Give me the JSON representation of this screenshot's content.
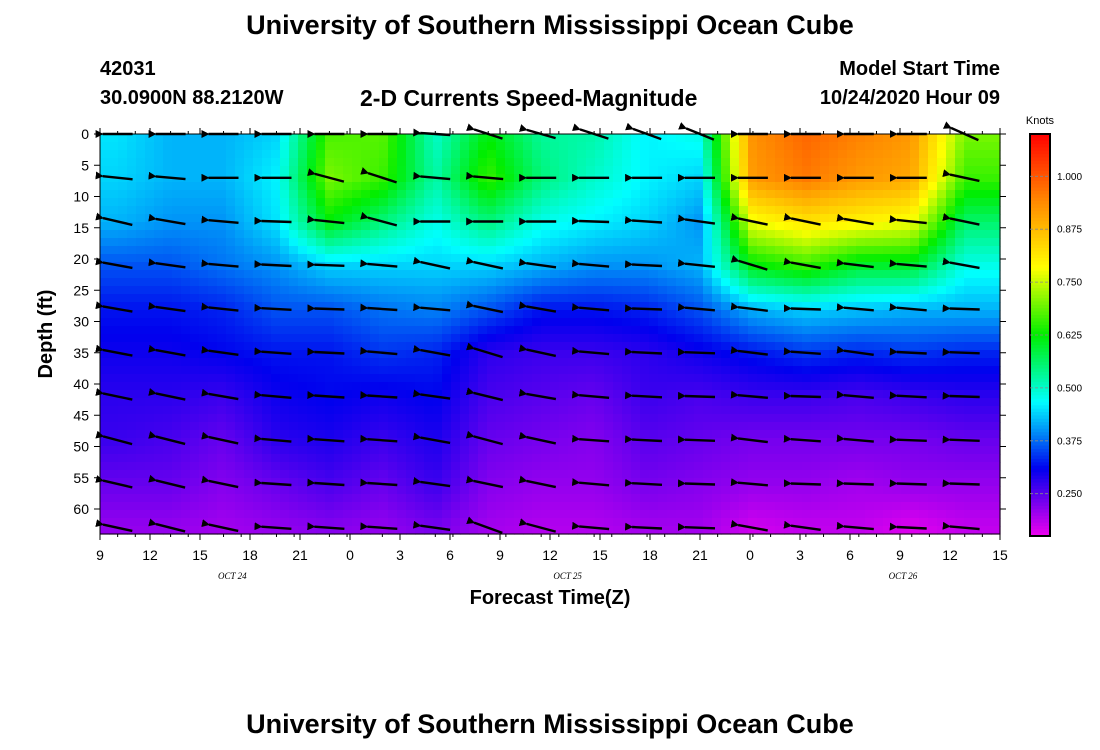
{
  "title": "University of Southern Mississippi Ocean Cube",
  "footer_title": "University of Southern Mississippi Ocean Cube",
  "station": {
    "id": "42031",
    "coords": "30.0900N 88.2120W"
  },
  "subtitle": "2-D Currents Speed-Magnitude",
  "model": {
    "label": "Model Start Time",
    "value": "10/24/2020 Hour 09"
  },
  "chart_data": {
    "type": "heatmap",
    "xlabel": "Forecast Time(Z)",
    "ylabel": "Depth (ft)",
    "x_tick_labels": [
      "9",
      "12",
      "15",
      "18",
      "21",
      "0",
      "3",
      "6",
      "9",
      "12",
      "15",
      "18",
      "21",
      "0",
      "3",
      "6",
      "9",
      "12",
      "15"
    ],
    "x_hours": [
      0,
      51
    ],
    "date_labels": [
      {
        "text": "OCT 24",
        "hour": 7.5
      },
      {
        "text": "OCT 25",
        "hour": 26.5
      },
      {
        "text": "OCT 26",
        "hour": 45.5
      }
    ],
    "y_ticks": [
      0,
      5,
      10,
      15,
      20,
      25,
      30,
      35,
      40,
      45,
      50,
      55,
      60
    ],
    "ylim": [
      0,
      64
    ],
    "colorbar": {
      "label": "Knots",
      "range": [
        0.15,
        1.1
      ],
      "ticks": [
        {
          "value": 1.0,
          "label": "1.000"
        },
        {
          "value": 0.875,
          "label": "0.875"
        },
        {
          "value": 0.75,
          "label": "0.750"
        },
        {
          "value": 0.625,
          "label": "0.625"
        },
        {
          "value": 0.5,
          "label": "0.500"
        },
        {
          "value": 0.375,
          "label": "0.375"
        },
        {
          "value": 0.25,
          "label": "0.250"
        }
      ],
      "colors": [
        "#ee00ee",
        "#0000ee",
        "#00ffff",
        "#00ee00",
        "#ffff00",
        "#ff8800",
        "#ff0000"
      ]
    },
    "time_columns": [
      1,
      4,
      7,
      10,
      13,
      16,
      19,
      22,
      25,
      28,
      31,
      34,
      37,
      40,
      43,
      46,
      49
    ],
    "depth_levels": [
      0,
      7,
      14,
      21,
      28,
      35,
      42,
      49,
      56,
      63
    ],
    "speed_grid": [
      [
        0.45,
        0.42,
        0.42,
        0.44,
        0.67,
        0.68,
        0.5,
        0.62,
        0.53,
        0.52,
        0.46,
        0.48,
        0.93,
        0.98,
        0.95,
        0.92,
        0.7
      ],
      [
        0.44,
        0.42,
        0.42,
        0.46,
        0.7,
        0.66,
        0.52,
        0.66,
        0.55,
        0.5,
        0.46,
        0.44,
        0.92,
        0.96,
        0.92,
        0.9,
        0.66
      ],
      [
        0.42,
        0.4,
        0.4,
        0.45,
        0.62,
        0.55,
        0.48,
        0.55,
        0.48,
        0.46,
        0.44,
        0.4,
        0.78,
        0.82,
        0.8,
        0.78,
        0.56
      ],
      [
        0.36,
        0.36,
        0.38,
        0.4,
        0.44,
        0.44,
        0.44,
        0.44,
        0.42,
        0.4,
        0.4,
        0.42,
        0.62,
        0.66,
        0.6,
        0.6,
        0.48
      ],
      [
        0.32,
        0.32,
        0.33,
        0.36,
        0.36,
        0.38,
        0.39,
        0.36,
        0.32,
        0.32,
        0.33,
        0.36,
        0.42,
        0.44,
        0.43,
        0.42,
        0.42
      ],
      [
        0.3,
        0.3,
        0.31,
        0.32,
        0.32,
        0.34,
        0.33,
        0.28,
        0.27,
        0.27,
        0.28,
        0.3,
        0.32,
        0.34,
        0.33,
        0.34,
        0.33
      ],
      [
        0.28,
        0.28,
        0.27,
        0.3,
        0.31,
        0.3,
        0.31,
        0.26,
        0.25,
        0.24,
        0.27,
        0.26,
        0.27,
        0.27,
        0.26,
        0.27,
        0.28
      ],
      [
        0.27,
        0.26,
        0.24,
        0.28,
        0.29,
        0.27,
        0.29,
        0.24,
        0.23,
        0.22,
        0.25,
        0.24,
        0.23,
        0.23,
        0.23,
        0.23,
        0.24
      ],
      [
        0.24,
        0.24,
        0.22,
        0.24,
        0.26,
        0.24,
        0.27,
        0.22,
        0.21,
        0.21,
        0.23,
        0.22,
        0.21,
        0.21,
        0.2,
        0.21,
        0.21
      ],
      [
        0.21,
        0.21,
        0.2,
        0.21,
        0.22,
        0.21,
        0.23,
        0.2,
        0.19,
        0.19,
        0.2,
        0.2,
        0.17,
        0.18,
        0.18,
        0.16,
        0.18
      ]
    ],
    "direction_grid": [
      [
        180,
        180,
        180,
        180,
        180,
        180,
        176,
        162,
        164,
        162,
        160,
        158,
        180,
        180,
        180,
        180,
        156
      ],
      [
        174,
        175,
        180,
        180,
        165,
        162,
        175,
        175,
        180,
        180,
        180,
        180,
        180,
        180,
        180,
        180,
        168
      ],
      [
        167,
        170,
        175,
        178,
        174,
        165,
        180,
        180,
        180,
        178,
        176,
        172,
        168,
        168,
        170,
        174,
        168
      ],
      [
        170,
        172,
        175,
        177,
        178,
        175,
        168,
        168,
        172,
        175,
        177,
        174,
        163,
        170,
        173,
        175,
        170
      ],
      [
        170,
        172,
        174,
        177,
        178,
        176,
        175,
        168,
        170,
        175,
        178,
        175,
        173,
        178,
        175,
        175,
        178
      ],
      [
        169,
        170,
        172,
        176,
        177,
        175,
        170,
        163,
        168,
        175,
        177,
        178,
        173,
        176,
        172,
        177,
        178
      ],
      [
        168,
        168,
        170,
        175,
        176,
        176,
        172,
        166,
        170,
        175,
        177,
        178,
        175,
        178,
        175,
        177,
        178
      ],
      [
        165,
        166,
        168,
        175,
        176,
        176,
        170,
        165,
        168,
        176,
        177,
        178,
        173,
        176,
        175,
        178,
        178
      ],
      [
        167,
        166,
        168,
        176,
        176,
        176,
        172,
        168,
        168,
        175,
        177,
        178,
        175,
        178,
        178,
        178,
        178
      ],
      [
        168,
        166,
        168,
        176,
        176,
        176,
        172,
        160,
        165,
        175,
        177,
        178,
        170,
        172,
        175,
        177,
        175
      ]
    ]
  }
}
